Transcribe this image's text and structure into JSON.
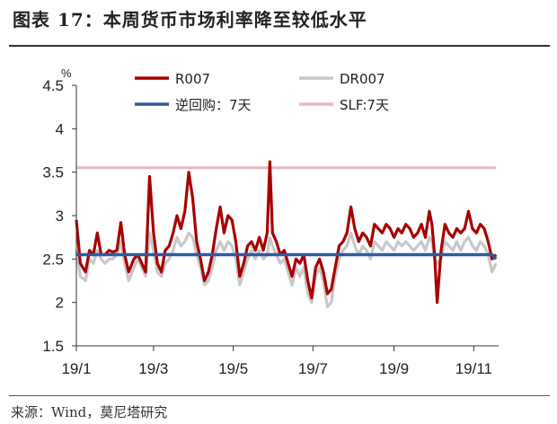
{
  "header": {
    "title": "图表 17：本周货币市场利率降至较低水平"
  },
  "footer": {
    "source": "来源：Wind，莫尼塔研究"
  },
  "chart_data": {
    "type": "line",
    "ylabel": "%",
    "ylim": [
      1.5,
      4.5
    ],
    "yticks": [
      "1.5",
      "2",
      "2.5",
      "3",
      "3.5",
      "4",
      "4.5"
    ],
    "xlim": [
      "2019-01-01",
      "2019-11-20"
    ],
    "xticks": [
      {
        "date": "2019-01-01",
        "label": "19/1"
      },
      {
        "date": "2019-03-01",
        "label": "19/3"
      },
      {
        "date": "2019-05-01",
        "label": "19/5"
      },
      {
        "date": "2019-07-01",
        "label": "19/7"
      },
      {
        "date": "2019-09-01",
        "label": "19/9"
      },
      {
        "date": "2019-11-01",
        "label": "19/11"
      }
    ],
    "legend_position": "top",
    "series": [
      {
        "name": "R007",
        "color": "#a80000",
        "width": 3.2,
        "points": [
          [
            "2019-01-01",
            2.95
          ],
          [
            "2019-01-04",
            2.45
          ],
          [
            "2019-01-08",
            2.35
          ],
          [
            "2019-01-11",
            2.6
          ],
          [
            "2019-01-14",
            2.55
          ],
          [
            "2019-01-17",
            2.8
          ],
          [
            "2019-01-20",
            2.55
          ],
          [
            "2019-01-23",
            2.55
          ],
          [
            "2019-01-26",
            2.6
          ],
          [
            "2019-01-29",
            2.58
          ],
          [
            "2019-02-01",
            2.6
          ],
          [
            "2019-02-04",
            2.92
          ],
          [
            "2019-02-07",
            2.55
          ],
          [
            "2019-02-10",
            2.35
          ],
          [
            "2019-02-14",
            2.5
          ],
          [
            "2019-02-17",
            2.55
          ],
          [
            "2019-02-20",
            2.45
          ],
          [
            "2019-02-23",
            2.35
          ],
          [
            "2019-02-26",
            3.45
          ],
          [
            "2019-03-01",
            2.8
          ],
          [
            "2019-03-04",
            2.45
          ],
          [
            "2019-03-07",
            2.35
          ],
          [
            "2019-03-10",
            2.6
          ],
          [
            "2019-03-13",
            2.65
          ],
          [
            "2019-03-16",
            2.8
          ],
          [
            "2019-03-19",
            3.0
          ],
          [
            "2019-03-22",
            2.85
          ],
          [
            "2019-03-25",
            3.05
          ],
          [
            "2019-03-28",
            3.5
          ],
          [
            "2019-03-31",
            3.2
          ],
          [
            "2019-04-03",
            2.7
          ],
          [
            "2019-04-06",
            2.5
          ],
          [
            "2019-04-09",
            2.25
          ],
          [
            "2019-04-12",
            2.35
          ],
          [
            "2019-04-15",
            2.55
          ],
          [
            "2019-04-18",
            2.85
          ],
          [
            "2019-04-21",
            3.1
          ],
          [
            "2019-04-24",
            2.8
          ],
          [
            "2019-04-27",
            3.0
          ],
          [
            "2019-04-30",
            2.95
          ],
          [
            "2019-05-03",
            2.7
          ],
          [
            "2019-05-06",
            2.3
          ],
          [
            "2019-05-09",
            2.45
          ],
          [
            "2019-05-12",
            2.65
          ],
          [
            "2019-05-15",
            2.7
          ],
          [
            "2019-05-18",
            2.6
          ],
          [
            "2019-05-21",
            2.75
          ],
          [
            "2019-05-24",
            2.6
          ],
          [
            "2019-05-27",
            2.8
          ],
          [
            "2019-05-29",
            3.62
          ],
          [
            "2019-05-31",
            2.8
          ],
          [
            "2019-06-03",
            2.7
          ],
          [
            "2019-06-06",
            2.55
          ],
          [
            "2019-06-09",
            2.6
          ],
          [
            "2019-06-12",
            2.45
          ],
          [
            "2019-06-15",
            2.3
          ],
          [
            "2019-06-18",
            2.5
          ],
          [
            "2019-06-21",
            2.45
          ],
          [
            "2019-06-24",
            2.55
          ],
          [
            "2019-06-27",
            2.25
          ],
          [
            "2019-06-30",
            2.05
          ],
          [
            "2019-07-03",
            2.4
          ],
          [
            "2019-07-06",
            2.5
          ],
          [
            "2019-07-09",
            2.35
          ],
          [
            "2019-07-12",
            2.1
          ],
          [
            "2019-07-15",
            2.15
          ],
          [
            "2019-07-18",
            2.4
          ],
          [
            "2019-07-21",
            2.65
          ],
          [
            "2019-07-24",
            2.7
          ],
          [
            "2019-07-27",
            2.8
          ],
          [
            "2019-07-30",
            3.1
          ],
          [
            "2019-08-02",
            2.85
          ],
          [
            "2019-08-05",
            2.7
          ],
          [
            "2019-08-08",
            2.8
          ],
          [
            "2019-08-11",
            2.75
          ],
          [
            "2019-08-14",
            2.65
          ],
          [
            "2019-08-17",
            2.9
          ],
          [
            "2019-08-20",
            2.85
          ],
          [
            "2019-08-23",
            2.8
          ],
          [
            "2019-08-26",
            2.9
          ],
          [
            "2019-08-29",
            2.85
          ],
          [
            "2019-09-01",
            2.75
          ],
          [
            "2019-09-04",
            2.85
          ],
          [
            "2019-09-07",
            2.8
          ],
          [
            "2019-09-10",
            2.9
          ],
          [
            "2019-09-13",
            2.85
          ],
          [
            "2019-09-16",
            2.75
          ],
          [
            "2019-09-19",
            2.8
          ],
          [
            "2019-09-22",
            2.9
          ],
          [
            "2019-09-25",
            2.75
          ],
          [
            "2019-09-28",
            3.05
          ],
          [
            "2019-09-30",
            2.9
          ],
          [
            "2019-10-02",
            2.55
          ],
          [
            "2019-10-04",
            2.0
          ],
          [
            "2019-10-07",
            2.6
          ],
          [
            "2019-10-10",
            2.9
          ],
          [
            "2019-10-13",
            2.8
          ],
          [
            "2019-10-16",
            2.75
          ],
          [
            "2019-10-19",
            2.85
          ],
          [
            "2019-10-22",
            2.8
          ],
          [
            "2019-10-25",
            2.85
          ],
          [
            "2019-10-28",
            3.05
          ],
          [
            "2019-10-31",
            2.85
          ],
          [
            "2019-11-03",
            2.8
          ],
          [
            "2019-11-06",
            2.9
          ],
          [
            "2019-11-09",
            2.85
          ],
          [
            "2019-11-12",
            2.7
          ],
          [
            "2019-11-15",
            2.5
          ],
          [
            "2019-11-18",
            2.55
          ]
        ]
      },
      {
        "name": "DR007",
        "color": "#c8c8c8",
        "width": 3.2,
        "points": [
          [
            "2019-01-01",
            2.6
          ],
          [
            "2019-01-04",
            2.3
          ],
          [
            "2019-01-08",
            2.25
          ],
          [
            "2019-01-11",
            2.5
          ],
          [
            "2019-01-14",
            2.45
          ],
          [
            "2019-01-17",
            2.6
          ],
          [
            "2019-01-20",
            2.5
          ],
          [
            "2019-01-23",
            2.45
          ],
          [
            "2019-01-26",
            2.5
          ],
          [
            "2019-01-29",
            2.5
          ],
          [
            "2019-02-01",
            2.55
          ],
          [
            "2019-02-04",
            2.7
          ],
          [
            "2019-02-07",
            2.45
          ],
          [
            "2019-02-10",
            2.25
          ],
          [
            "2019-02-14",
            2.4
          ],
          [
            "2019-02-17",
            2.5
          ],
          [
            "2019-02-20",
            2.4
          ],
          [
            "2019-02-23",
            2.3
          ],
          [
            "2019-02-26",
            2.8
          ],
          [
            "2019-03-01",
            2.6
          ],
          [
            "2019-03-04",
            2.35
          ],
          [
            "2019-03-07",
            2.3
          ],
          [
            "2019-03-10",
            2.45
          ],
          [
            "2019-03-13",
            2.5
          ],
          [
            "2019-03-16",
            2.6
          ],
          [
            "2019-03-19",
            2.75
          ],
          [
            "2019-03-22",
            2.65
          ],
          [
            "2019-03-25",
            2.7
          ],
          [
            "2019-03-28",
            2.8
          ],
          [
            "2019-03-31",
            2.75
          ],
          [
            "2019-04-03",
            2.55
          ],
          [
            "2019-04-06",
            2.4
          ],
          [
            "2019-04-09",
            2.2
          ],
          [
            "2019-04-12",
            2.25
          ],
          [
            "2019-04-15",
            2.4
          ],
          [
            "2019-04-18",
            2.6
          ],
          [
            "2019-04-21",
            2.7
          ],
          [
            "2019-04-24",
            2.6
          ],
          [
            "2019-04-27",
            2.7
          ],
          [
            "2019-04-30",
            2.65
          ],
          [
            "2019-05-03",
            2.5
          ],
          [
            "2019-05-06",
            2.2
          ],
          [
            "2019-05-09",
            2.35
          ],
          [
            "2019-05-12",
            2.5
          ],
          [
            "2019-05-15",
            2.6
          ],
          [
            "2019-05-18",
            2.5
          ],
          [
            "2019-05-21",
            2.6
          ],
          [
            "2019-05-24",
            2.5
          ],
          [
            "2019-05-27",
            2.55
          ],
          [
            "2019-05-29",
            2.75
          ],
          [
            "2019-05-31",
            2.65
          ],
          [
            "2019-06-03",
            2.55
          ],
          [
            "2019-06-06",
            2.45
          ],
          [
            "2019-06-09",
            2.5
          ],
          [
            "2019-06-12",
            2.35
          ],
          [
            "2019-06-15",
            2.2
          ],
          [
            "2019-06-18",
            2.4
          ],
          [
            "2019-06-21",
            2.3
          ],
          [
            "2019-06-24",
            2.4
          ],
          [
            "2019-06-27",
            2.1
          ],
          [
            "2019-06-30",
            2.0
          ],
          [
            "2019-07-03",
            2.3
          ],
          [
            "2019-07-06",
            2.4
          ],
          [
            "2019-07-09",
            2.25
          ],
          [
            "2019-07-12",
            1.95
          ],
          [
            "2019-07-15",
            2.0
          ],
          [
            "2019-07-18",
            2.3
          ],
          [
            "2019-07-21",
            2.5
          ],
          [
            "2019-07-24",
            2.6
          ],
          [
            "2019-07-27",
            2.65
          ],
          [
            "2019-07-30",
            2.8
          ],
          [
            "2019-08-02",
            2.65
          ],
          [
            "2019-08-05",
            2.55
          ],
          [
            "2019-08-08",
            2.65
          ],
          [
            "2019-08-11",
            2.6
          ],
          [
            "2019-08-14",
            2.5
          ],
          [
            "2019-08-17",
            2.7
          ],
          [
            "2019-08-20",
            2.65
          ],
          [
            "2019-08-23",
            2.6
          ],
          [
            "2019-08-26",
            2.7
          ],
          [
            "2019-08-29",
            2.65
          ],
          [
            "2019-09-01",
            2.6
          ],
          [
            "2019-09-04",
            2.7
          ],
          [
            "2019-09-07",
            2.65
          ],
          [
            "2019-09-10",
            2.7
          ],
          [
            "2019-09-13",
            2.65
          ],
          [
            "2019-09-16",
            2.6
          ],
          [
            "2019-09-19",
            2.65
          ],
          [
            "2019-09-22",
            2.7
          ],
          [
            "2019-09-25",
            2.6
          ],
          [
            "2019-09-28",
            2.75
          ],
          [
            "2019-09-30",
            2.7
          ],
          [
            "2019-10-02",
            2.5
          ],
          [
            "2019-10-04",
            2.45
          ],
          [
            "2019-10-07",
            2.5
          ],
          [
            "2019-10-10",
            2.7
          ],
          [
            "2019-10-13",
            2.65
          ],
          [
            "2019-10-16",
            2.6
          ],
          [
            "2019-10-19",
            2.7
          ],
          [
            "2019-10-22",
            2.6
          ],
          [
            "2019-10-25",
            2.7
          ],
          [
            "2019-10-28",
            2.75
          ],
          [
            "2019-10-31",
            2.65
          ],
          [
            "2019-11-03",
            2.6
          ],
          [
            "2019-11-06",
            2.7
          ],
          [
            "2019-11-09",
            2.65
          ],
          [
            "2019-11-12",
            2.55
          ],
          [
            "2019-11-15",
            2.35
          ],
          [
            "2019-11-18",
            2.45
          ]
        ]
      },
      {
        "name": "逆回购：7天",
        "color": "#2f5aa0",
        "width": 3.5,
        "points": [
          [
            "2019-01-01",
            2.55
          ],
          [
            "2019-11-15",
            2.55
          ],
          [
            "2019-11-18",
            2.5
          ]
        ]
      },
      {
        "name": "SLF:7天",
        "color": "#e8b8c0",
        "width": 3,
        "points": [
          [
            "2019-01-01",
            3.55
          ],
          [
            "2019-11-18",
            3.55
          ]
        ]
      }
    ]
  }
}
